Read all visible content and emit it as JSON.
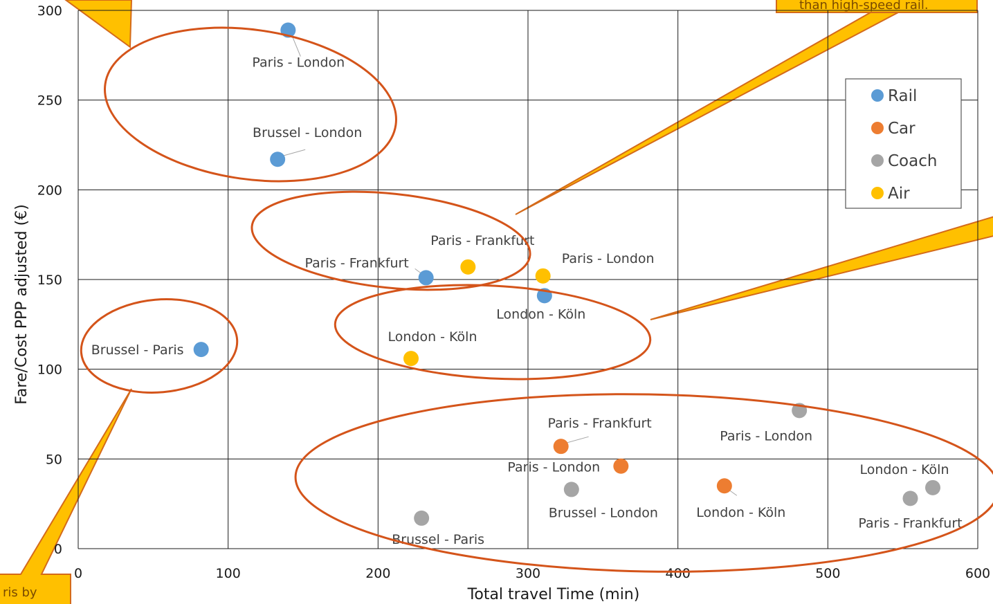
{
  "chart_data": {
    "type": "scatter",
    "title": "",
    "xlabel": "Total travel Time (min)",
    "ylabel": "Fare/Cost PPP adjusted (€)",
    "xlim": [
      0,
      600
    ],
    "ylim": [
      0,
      300
    ],
    "xticks": [
      "0",
      "100",
      "200",
      "300",
      "400",
      "500",
      "600"
    ],
    "yticks": [
      "0",
      "50",
      "100",
      "150",
      "200",
      "250",
      "300"
    ],
    "grid": true,
    "legend_position": "right",
    "series": [
      {
        "name": "Rail",
        "color": "#5b9bd5",
        "points": [
          {
            "x": 140,
            "y": 289,
            "label": "Paris - London"
          },
          {
            "x": 133,
            "y": 217,
            "label": "Brussel - London"
          },
          {
            "x": 232,
            "y": 151,
            "label": "Paris - Frankfurt"
          },
          {
            "x": 311,
            "y": 141,
            "label": "London - Köln"
          },
          {
            "x": 82,
            "y": 111,
            "label": "Brussel - Paris"
          }
        ]
      },
      {
        "name": "Car",
        "color": "#ed7d31",
        "points": [
          {
            "x": 322,
            "y": 57,
            "label": "Paris - Frankfurt"
          },
          {
            "x": 362,
            "y": 46,
            "label": "Paris - London"
          },
          {
            "x": 431,
            "y": 35,
            "label": "London - Köln"
          }
        ]
      },
      {
        "name": "Coach",
        "color": "#a5a5a5",
        "points": [
          {
            "x": 481,
            "y": 77,
            "label": "Paris - London"
          },
          {
            "x": 329,
            "y": 33,
            "label": "Brussel - London"
          },
          {
            "x": 229,
            "y": 17,
            "label": "Brussel - Paris"
          },
          {
            "x": 570,
            "y": 34,
            "label": "London - Köln"
          },
          {
            "x": 555,
            "y": 28,
            "label": "Paris - Frankfurt"
          }
        ]
      },
      {
        "name": "Air",
        "color": "#ffc000",
        "points": [
          {
            "x": 260,
            "y": 157,
            "label": "Paris - Frankfurt"
          },
          {
            "x": 310,
            "y": 152,
            "label": "Paris - London"
          },
          {
            "x": 222,
            "y": 106,
            "label": "London - Köln"
          }
        ]
      }
    ],
    "annotations": [
      {
        "text": "than high-speed rail."
      },
      {
        "text": "ris by"
      }
    ]
  }
}
